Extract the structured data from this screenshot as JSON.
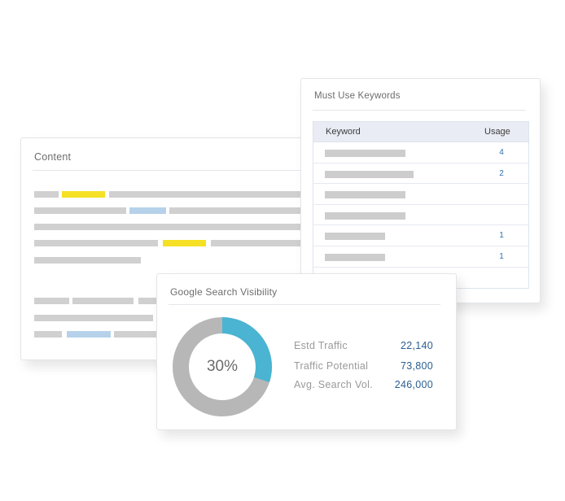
{
  "content_card": {
    "title": "Content"
  },
  "keywords_card": {
    "title": "Must Use Keywords",
    "columns": [
      "Keyword",
      "Usage"
    ],
    "rows": [
      {
        "usage": "4"
      },
      {
        "usage": "2"
      },
      {
        "usage": ""
      },
      {
        "usage": ""
      },
      {
        "usage": "1"
      },
      {
        "usage": "1"
      },
      {
        "usage": ""
      }
    ]
  },
  "visibility_card": {
    "title": "Google Search Visibility",
    "percent_label": "30%",
    "percent_value": 0.3,
    "metrics": [
      {
        "label": "Estd Traffic",
        "value": "22,140"
      },
      {
        "label": "Traffic Potential",
        "value": "73,800"
      },
      {
        "label": "Avg. Search Vol.",
        "value": "246,000"
      }
    ]
  },
  "colors": {
    "highlight_yellow": "#f5e025",
    "highlight_blue": "#b6d2ea",
    "donut_fill": "#4ab4d2",
    "donut_track": "#b7b7b7",
    "value_blue": "#2a5e92"
  }
}
